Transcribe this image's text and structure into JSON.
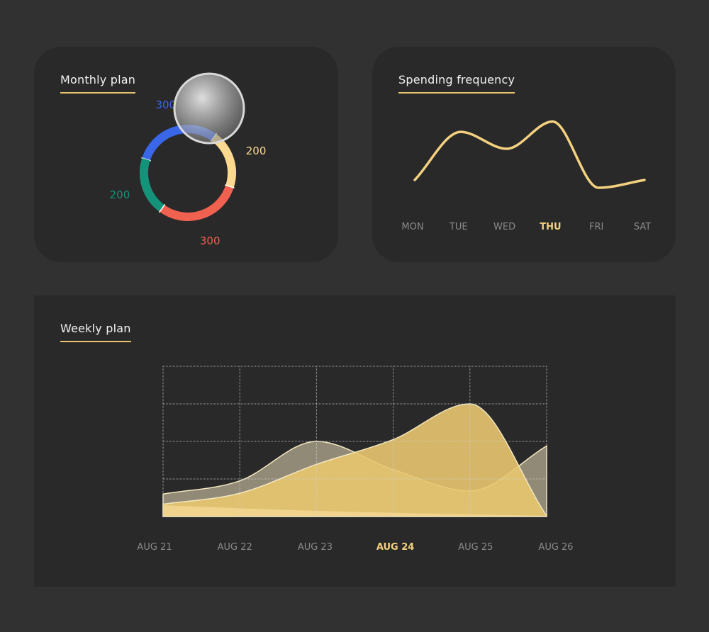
{
  "colors": {
    "background": "#313131",
    "card": "#292929",
    "accent": "#e7c46e",
    "teal": "#15937a",
    "blue": "#3a66e8",
    "yellow": "#fbd98f",
    "red": "#f0614f",
    "muted": "#8a8a8a"
  },
  "monthly": {
    "title": "Monthly plan"
  },
  "spending": {
    "title": "Spending frequency"
  },
  "weekly": {
    "title": "Weekly plan"
  },
  "chart_data": [
    {
      "type": "pie",
      "variant": "donut",
      "title": "Monthly plan",
      "slices": [
        {
          "label": "300",
          "value": 300,
          "color": "#3a66e8"
        },
        {
          "label": "200",
          "value": 200,
          "color": "#fbd98f"
        },
        {
          "label": "300",
          "value": 300,
          "color": "#f0614f"
        },
        {
          "label": "200",
          "value": 200,
          "color": "#15937a"
        }
      ]
    },
    {
      "type": "line",
      "title": "Spending frequency",
      "categories": [
        "MON",
        "TUE",
        "WED",
        "THU",
        "FRI",
        "SAT"
      ],
      "highlight": "THU",
      "values": [
        1.2,
        4.9,
        3.6,
        5.7,
        0.6,
        1.2
      ],
      "curve": "smooth",
      "color": "#f3d180"
    },
    {
      "type": "area",
      "title": "Weekly plan",
      "categories": [
        "AUG 21",
        "AUG 22",
        "AUG 23",
        "AUG 24",
        "AUG 25",
        "AUG 26"
      ],
      "highlight": "AUG 24",
      "ylim": [
        0,
        4
      ],
      "grid": true,
      "series": [
        {
          "color": "#a39b84",
          "values": [
            0.6,
            0.95,
            2.0,
            1.25,
            0.68,
            1.88
          ]
        },
        {
          "color": "#e9c670",
          "values": [
            0.33,
            0.62,
            1.39,
            2.05,
            3.0,
            0.02
          ]
        },
        {
          "color": "#f6d896",
          "values": [
            0.3,
            0.22,
            0.15,
            0.1,
            0.06,
            0.02
          ]
        }
      ]
    }
  ]
}
